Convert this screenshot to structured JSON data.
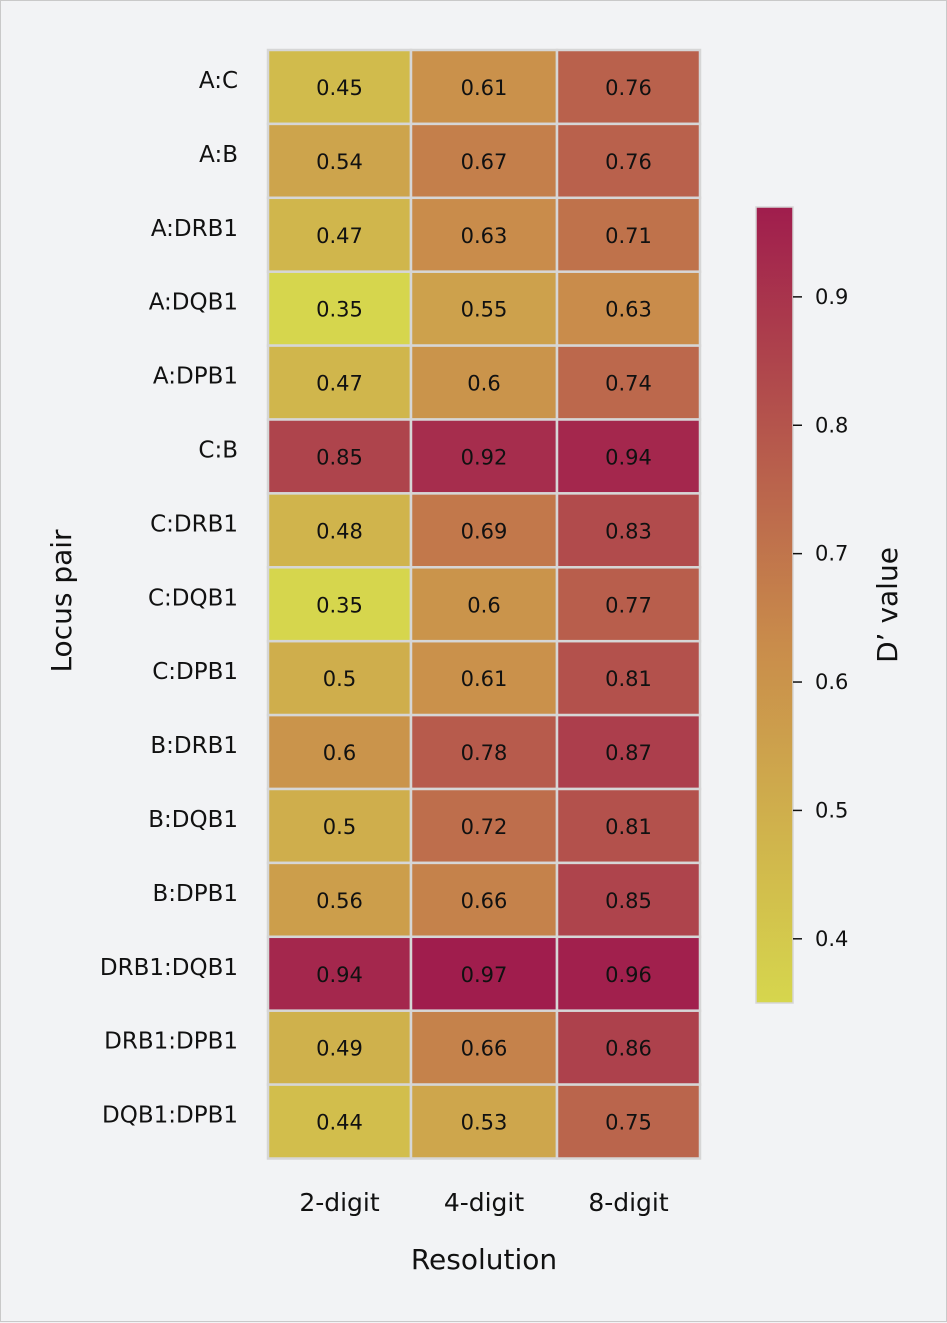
{
  "chart_data": {
    "type": "heatmap",
    "xlabel": "Resolution",
    "ylabel": "Locus pair",
    "columns": [
      "2-digit",
      "4-digit",
      "8-digit"
    ],
    "rows": [
      "A:C",
      "A:B",
      "A:DRB1",
      "A:DQB1",
      "A:DPB1",
      "C:B",
      "C:DRB1",
      "C:DQB1",
      "C:DPB1",
      "B:DRB1",
      "B:DQB1",
      "B:DPB1",
      "DRB1:DQB1",
      "DRB1:DPB1",
      "DQB1:DPB1"
    ],
    "values": [
      [
        0.45,
        0.61,
        0.76
      ],
      [
        0.54,
        0.67,
        0.76
      ],
      [
        0.47,
        0.63,
        0.71
      ],
      [
        0.35,
        0.55,
        0.63
      ],
      [
        0.47,
        0.6,
        0.74
      ],
      [
        0.85,
        0.92,
        0.94
      ],
      [
        0.48,
        0.69,
        0.83
      ],
      [
        0.35,
        0.6,
        0.77
      ],
      [
        0.5,
        0.61,
        0.81
      ],
      [
        0.6,
        0.78,
        0.87
      ],
      [
        0.5,
        0.72,
        0.81
      ],
      [
        0.56,
        0.66,
        0.85
      ],
      [
        0.94,
        0.97,
        0.96
      ],
      [
        0.49,
        0.66,
        0.86
      ],
      [
        0.44,
        0.53,
        0.75
      ]
    ],
    "value_labels": [
      [
        "0.45",
        "0.61",
        "0.76"
      ],
      [
        "0.54",
        "0.67",
        "0.76"
      ],
      [
        "0.47",
        "0.63",
        "0.71"
      ],
      [
        "0.35",
        "0.55",
        "0.63"
      ],
      [
        "0.47",
        "0.6",
        "0.74"
      ],
      [
        "0.85",
        "0.92",
        "0.94"
      ],
      [
        "0.48",
        "0.69",
        "0.83"
      ],
      [
        "0.35",
        "0.6",
        "0.77"
      ],
      [
        "0.5",
        "0.61",
        "0.81"
      ],
      [
        "0.6",
        "0.78",
        "0.87"
      ],
      [
        "0.5",
        "0.72",
        "0.81"
      ],
      [
        "0.56",
        "0.66",
        "0.85"
      ],
      [
        "0.94",
        "0.97",
        "0.96"
      ],
      [
        "0.49",
        "0.66",
        "0.86"
      ],
      [
        "0.44",
        "0.53",
        "0.75"
      ]
    ],
    "colorbar": {
      "label": "D’ value",
      "range": [
        0.35,
        0.97
      ],
      "ticks": [
        0.4,
        0.5,
        0.6,
        0.7,
        0.8,
        0.9
      ],
      "tick_labels": [
        "0.4",
        "0.5",
        "0.6",
        "0.7",
        "0.8",
        "0.9"
      ],
      "color_low": "#d6d64d",
      "color_mid": "#c98c4b",
      "color_high": "#a01d4d"
    },
    "grid_line_color": "#d6d6d6"
  }
}
